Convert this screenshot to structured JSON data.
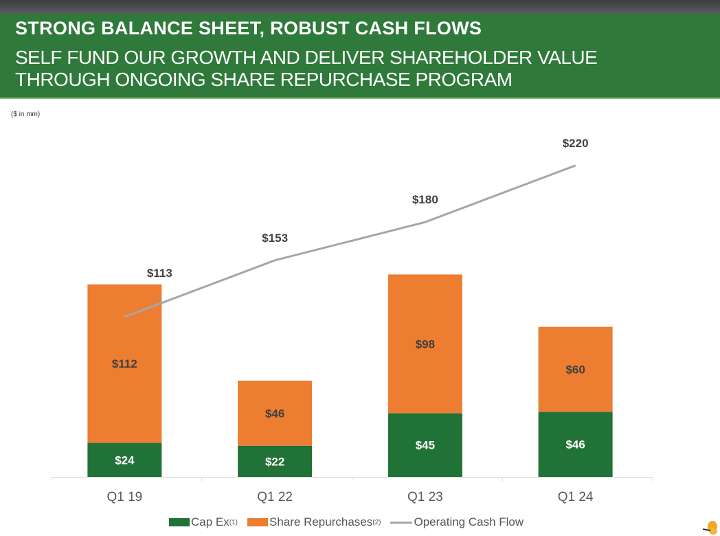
{
  "header": {
    "title": "STRONG BALANCE SHEET, ROBUST CASH FLOWS",
    "subtitle_line1": "SELF FUND OUR GROWTH AND DELIVER SHAREHOLDER VALUE",
    "subtitle_line2": "THROUGH ONGOING SHARE REPURCHASE PROGRAM"
  },
  "units_note": "($ in mm)",
  "logo_icon": "butterfly-icon",
  "chart_data": {
    "type": "bar",
    "stacked": true,
    "categories": [
      "Q1 19",
      "Q1 22",
      "Q1 23",
      "Q1 24"
    ],
    "series": [
      {
        "name": "Cap Ex",
        "superscript": "(1)",
        "type": "bar",
        "color": "#217237",
        "values": [
          24,
          22,
          45,
          46
        ],
        "labels": [
          "$24",
          "$22",
          "$45",
          "$46"
        ]
      },
      {
        "name": "Share Repurchases",
        "superscript": "(2)",
        "type": "bar",
        "color": "#ed7d31",
        "values": [
          112,
          46,
          98,
          60
        ],
        "labels": [
          "$112",
          "$46",
          "$98",
          "$60"
        ]
      },
      {
        "name": "Operating Cash Flow",
        "type": "line",
        "color": "#a6a6a6",
        "values": [
          113,
          153,
          180,
          220
        ],
        "labels": [
          "$113",
          "$153",
          "$180",
          "$220"
        ]
      }
    ],
    "ylim": [
      0,
      280
    ],
    "grid": false,
    "legend": "bottom"
  }
}
